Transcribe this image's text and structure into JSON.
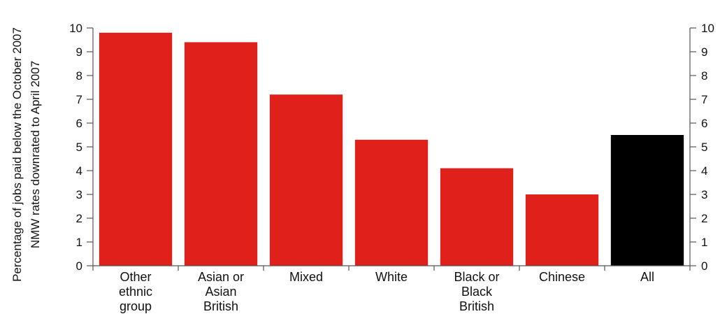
{
  "chart_data": {
    "type": "bar",
    "ylabel_lines": [
      "Percentage of jobs paid below the October 2007",
      "NMW rates downrated to April 2007"
    ],
    "categories": [
      [
        "Other",
        "ethnic",
        "group"
      ],
      [
        "Asian or",
        "Asian",
        "British"
      ],
      [
        "Mixed"
      ],
      [
        "White"
      ],
      [
        "Black or",
        "Black",
        "British"
      ],
      [
        "Chinese"
      ],
      [
        "All"
      ]
    ],
    "values": [
      9.8,
      9.4,
      7.2,
      5.3,
      4.1,
      3.0,
      5.5
    ],
    "bar_colors": [
      "#e0201b",
      "#e0201b",
      "#e0201b",
      "#e0201b",
      "#e0201b",
      "#e0201b",
      "#000000"
    ],
    "ylim": [
      0,
      10
    ],
    "yticks": [
      0,
      1,
      2,
      3,
      4,
      5,
      6,
      7,
      8,
      9,
      10
    ],
    "right_axis_ticks": true,
    "grid": false
  }
}
